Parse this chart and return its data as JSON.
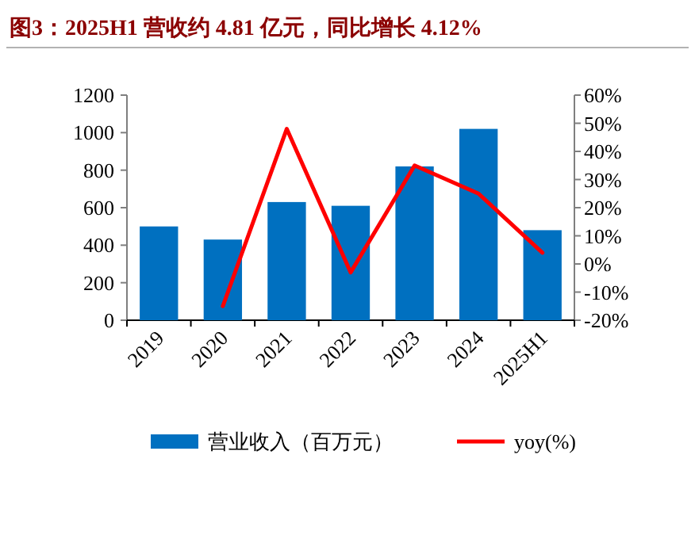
{
  "chart_data": {
    "type": "bar",
    "title": "图3：2025H1 营收约 4.81 亿元，同比增长 4.12%",
    "categories": [
      "2019",
      "2020",
      "2021",
      "2022",
      "2023",
      "2024",
      "2025H1"
    ],
    "series": [
      {
        "name": "营业收入（百万元）",
        "color": "#0070c0",
        "values": [
          500,
          430,
          630,
          610,
          820,
          1020,
          480
        ]
      },
      {
        "name": "yoy(%)",
        "type": "line",
        "axis": "y2",
        "color": "#ff0000",
        "values": [
          null,
          -15,
          48,
          -3,
          35,
          25,
          4
        ]
      }
    ],
    "ylim": [
      0,
      1200
    ],
    "yticks": [
      0,
      200,
      400,
      600,
      800,
      1000,
      1200
    ],
    "y2lim": [
      -20,
      60
    ],
    "y2ticks": [
      {
        "value": -20,
        "label": "-20%"
      },
      {
        "value": -10,
        "label": "-10%"
      },
      {
        "value": 0,
        "label": "0%"
      },
      {
        "value": 10,
        "label": "10%"
      },
      {
        "value": 20,
        "label": "20%"
      },
      {
        "value": 30,
        "label": "30%"
      },
      {
        "value": 40,
        "label": "40%"
      },
      {
        "value": 50,
        "label": "50%"
      },
      {
        "value": 60,
        "label": "60%"
      }
    ],
    "legend": "bottom",
    "grid": false,
    "marker": "none"
  }
}
